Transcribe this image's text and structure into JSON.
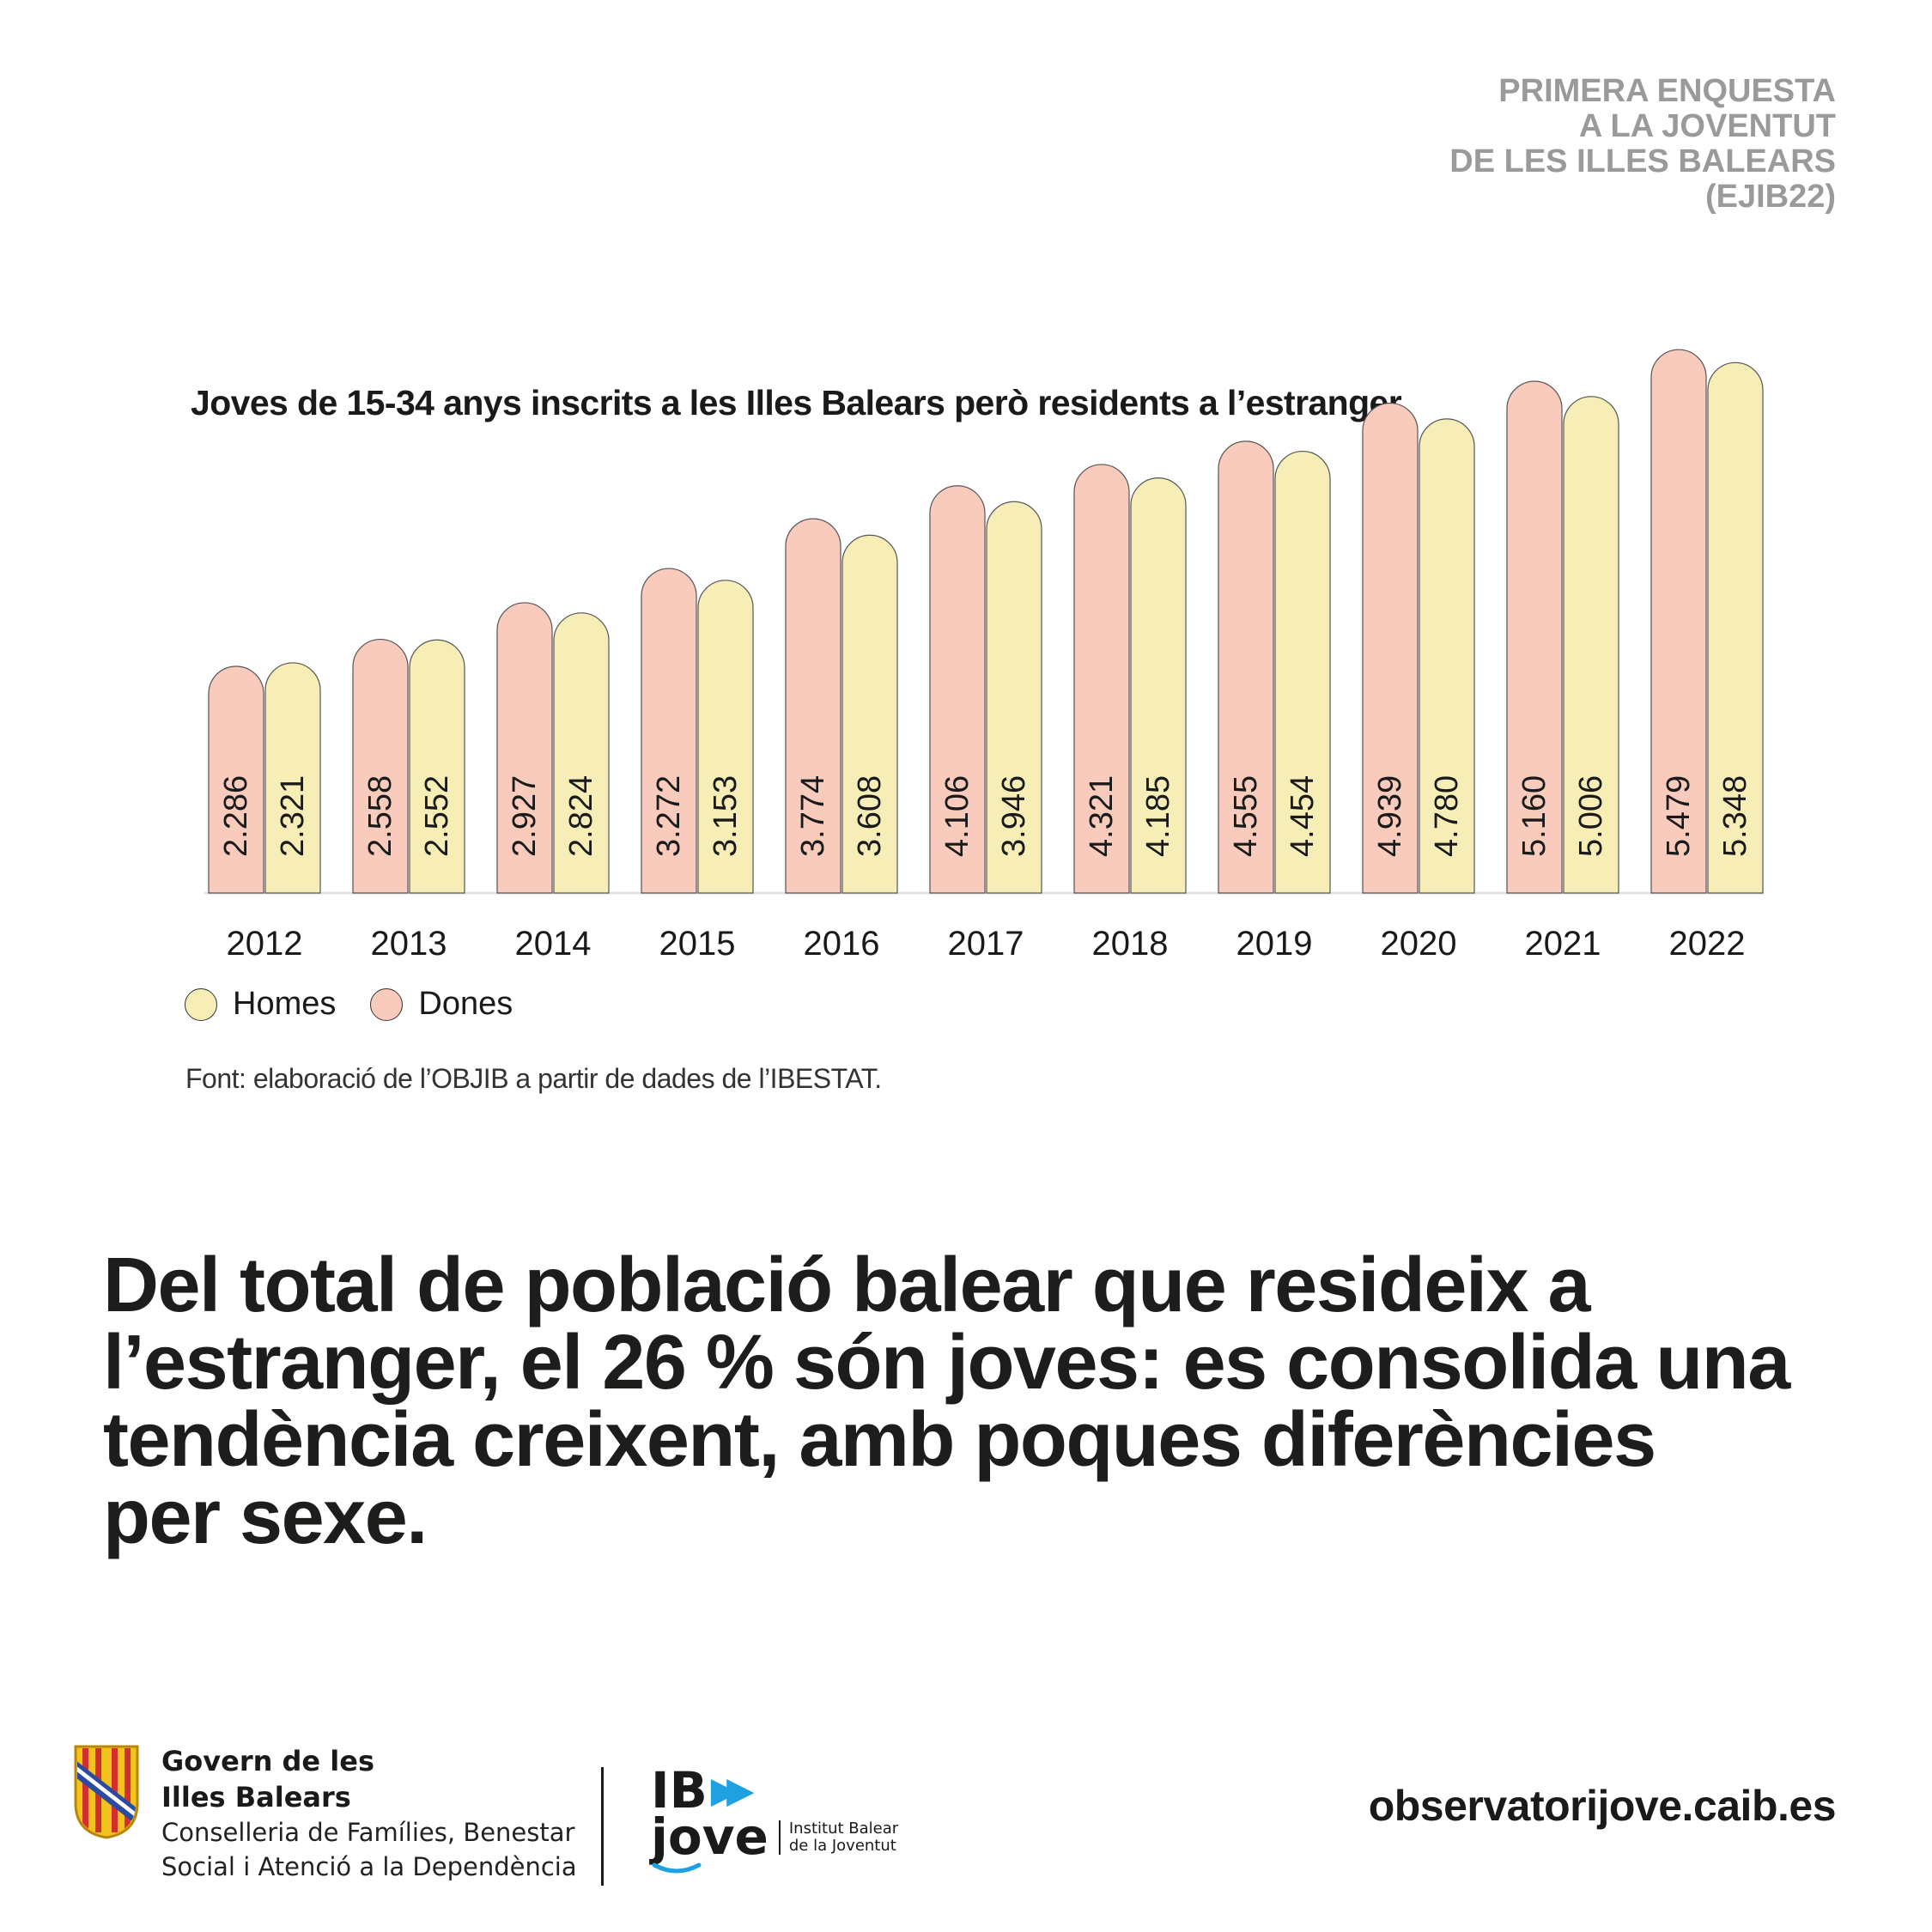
{
  "header": {
    "corner_title": [
      "PRIMERA ENQUESTA",
      "A LA JOVENTUT",
      "DE LES ILLES BALEARS",
      "(EJIB22)"
    ]
  },
  "chart_data": {
    "type": "bar",
    "title": "Joves de 15-34 anys inscrits a les Illes Balears però residents a l’estranger",
    "categories": [
      "2012",
      "2013",
      "2014",
      "2015",
      "2016",
      "2017",
      "2018",
      "2019",
      "2020",
      "2021",
      "2022"
    ],
    "series": [
      {
        "name": "Dones",
        "color": "#f8cbbd",
        "values": [
          2286,
          2558,
          2927,
          3272,
          3774,
          4106,
          4321,
          4555,
          4939,
          5160,
          5479
        ],
        "labels": [
          "2.286",
          "2.558",
          "2.927",
          "3.272",
          "3.774",
          "4.106",
          "4.321",
          "4.555",
          "4.939",
          "5.160",
          "5.479"
        ]
      },
      {
        "name": "Homes",
        "color": "#f7eeb7",
        "values": [
          2321,
          2552,
          2824,
          3153,
          3608,
          3946,
          4185,
          4454,
          4780,
          5006,
          5348
        ],
        "labels": [
          "2.321",
          "2.552",
          "2.824",
          "3.153",
          "3.608",
          "3.946",
          "4.185",
          "4.454",
          "4.780",
          "5.006",
          "5.348"
        ]
      }
    ],
    "legend": {
      "position": "bottom-left",
      "items": [
        "Homes",
        "Dones"
      ]
    },
    "xlabel": "",
    "ylabel": "",
    "grid": false,
    "value_labels": "vertical, inside bars"
  },
  "legend": {
    "homes": {
      "label": "Homes",
      "color": "#f7eeb7"
    },
    "dones": {
      "label": "Dones",
      "color": "#f8cbbd"
    }
  },
  "source": "Font: elaboració de l’OBJIB a partir de dades de l’IBESTAT.",
  "headline": [
    "Del total de població balear que resideix a",
    "l’estranger, el 26 % són joves: es consolida una",
    "tendència creixent, amb poques diferències",
    "per sexe."
  ],
  "footer": {
    "gov_name": [
      "Govern de les",
      "Illes Balears"
    ],
    "gov_dept": [
      "Conselleria de Famílies, Benestar",
      "Social i Atenció a la Dependència"
    ],
    "ibjove_logo": [
      "IB",
      "jove"
    ],
    "ibjove_sub": [
      "Institut Balear",
      "de la Joventut"
    ],
    "url": "observatorijove.caib.es",
    "accent_color": "#1da1e2"
  }
}
